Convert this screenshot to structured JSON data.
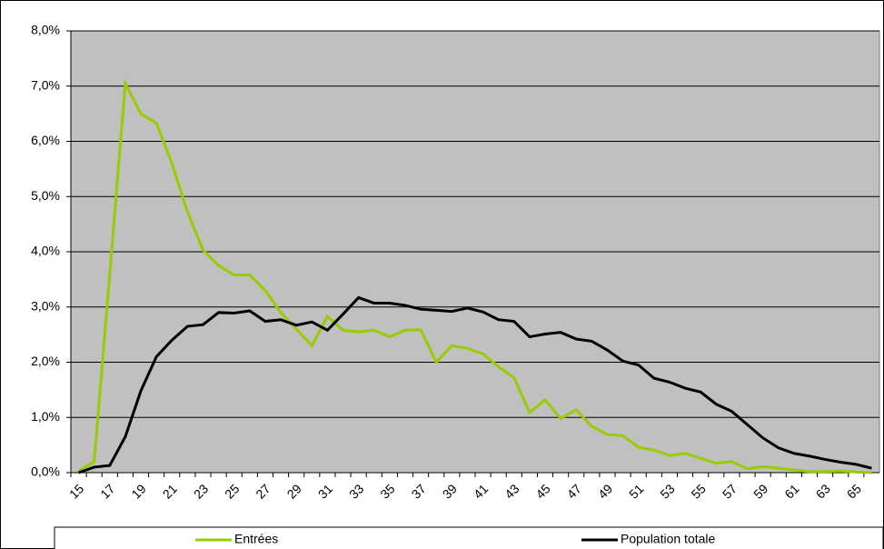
{
  "chart_data": {
    "type": "line",
    "categories": [
      "15",
      null,
      "17",
      null,
      "19",
      null,
      "21",
      null,
      "23",
      null,
      "25",
      null,
      "27",
      null,
      "29",
      null,
      "31",
      null,
      "33",
      null,
      "35",
      null,
      "37",
      null,
      "39",
      null,
      "41",
      null,
      "43",
      null,
      "45",
      null,
      "47",
      null,
      "49",
      null,
      "51",
      null,
      "53",
      null,
      "55",
      null,
      "57",
      null,
      "59",
      null,
      "61",
      null,
      "63",
      null,
      "65",
      null
    ],
    "series": [
      {
        "name": "Entrées",
        "color": "#99cc00",
        "values": [
          0.03,
          0.2,
          3.6,
          7.05,
          6.5,
          6.33,
          5.6,
          4.72,
          4.03,
          3.75,
          3.58,
          3.58,
          3.3,
          2.9,
          2.6,
          2.3,
          2.83,
          2.58,
          2.55,
          2.58,
          2.46,
          2.58,
          2.59,
          2.0,
          2.3,
          2.25,
          2.15,
          1.92,
          1.72,
          1.09,
          1.32,
          0.98,
          1.14,
          0.84,
          0.69,
          0.67,
          0.46,
          0.41,
          0.31,
          0.35,
          0.26,
          0.17,
          0.2,
          0.07,
          0.11,
          0.08,
          0.05,
          0.02,
          0.02,
          0.03,
          0.01,
          0.0
        ]
      },
      {
        "name": "Population totale",
        "color": "#000000",
        "values": [
          0.0,
          0.1,
          0.13,
          0.65,
          1.48,
          2.1,
          2.4,
          2.65,
          2.68,
          2.9,
          2.89,
          2.93,
          2.74,
          2.77,
          2.67,
          2.73,
          2.58,
          2.87,
          3.17,
          3.07,
          3.07,
          3.03,
          2.96,
          2.94,
          2.92,
          2.98,
          2.91,
          2.77,
          2.74,
          2.46,
          2.51,
          2.54,
          2.42,
          2.38,
          2.22,
          2.02,
          1.95,
          1.71,
          1.64,
          1.53,
          1.46,
          1.24,
          1.11,
          0.87,
          0.63,
          0.45,
          0.35,
          0.3,
          0.24,
          0.19,
          0.15,
          0.08
        ]
      }
    ],
    "ylim": [
      0,
      8
    ],
    "yticks": [
      {
        "value": 0,
        "label": "0,0%"
      },
      {
        "value": 1,
        "label": "1,0%"
      },
      {
        "value": 2,
        "label": "2,0%"
      },
      {
        "value": 3,
        "label": "3,0%"
      },
      {
        "value": 4,
        "label": "4,0%"
      },
      {
        "value": 5,
        "label": "5,0%"
      },
      {
        "value": 6,
        "label": "6,0%"
      },
      {
        "value": 7,
        "label": "7,0%"
      },
      {
        "value": 8,
        "label": "8,0%"
      }
    ],
    "grid": true,
    "legend": "bottom",
    "plot_background": "#c0c0c0"
  }
}
